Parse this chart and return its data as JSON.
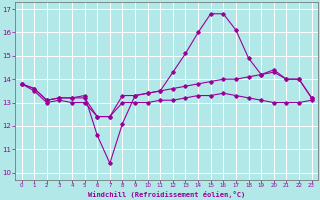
{
  "xlabel": "Windchill (Refroidissement éolien,°C)",
  "background_color": "#b2e8e8",
  "grid_color": "#ffffff",
  "line_color": "#990099",
  "xlim": [
    -0.5,
    23.5
  ],
  "ylim": [
    9.7,
    17.3
  ],
  "xticks": [
    0,
    1,
    2,
    3,
    4,
    5,
    6,
    7,
    8,
    9,
    10,
    11,
    12,
    13,
    14,
    15,
    16,
    17,
    18,
    19,
    20,
    21,
    22,
    23
  ],
  "yticks": [
    10,
    11,
    12,
    13,
    14,
    15,
    16,
    17
  ],
  "line1_x": [
    0,
    1,
    2,
    3,
    4,
    5,
    6,
    7,
    8,
    9,
    10,
    11,
    12,
    13,
    14,
    15,
    16,
    17,
    18,
    19,
    20,
    21,
    22,
    23
  ],
  "line1_y": [
    13.8,
    13.6,
    13.1,
    13.2,
    13.2,
    13.3,
    11.6,
    10.4,
    12.1,
    13.3,
    13.4,
    13.5,
    14.3,
    15.1,
    16.0,
    16.8,
    16.8,
    16.1,
    14.9,
    14.2,
    14.4,
    14.0,
    14.0,
    13.2
  ],
  "line2_x": [
    0,
    1,
    2,
    3,
    4,
    5,
    6,
    7,
    8,
    9,
    10,
    11,
    12,
    13,
    14,
    15,
    16,
    17,
    18,
    19,
    20,
    21,
    22,
    23
  ],
  "line2_y": [
    13.8,
    13.6,
    13.1,
    13.2,
    13.2,
    13.2,
    12.4,
    12.4,
    13.3,
    13.3,
    13.4,
    13.5,
    13.6,
    13.7,
    13.8,
    13.9,
    14.0,
    14.0,
    14.1,
    14.2,
    14.3,
    14.0,
    14.0,
    13.2
  ],
  "line3_x": [
    0,
    1,
    2,
    3,
    4,
    5,
    6,
    7,
    8,
    9,
    10,
    11,
    12,
    13,
    14,
    15,
    16,
    17,
    18,
    19,
    20,
    21,
    22,
    23
  ],
  "line3_y": [
    13.8,
    13.5,
    13.0,
    13.1,
    13.0,
    13.0,
    12.4,
    12.4,
    13.0,
    13.0,
    13.0,
    13.1,
    13.1,
    13.2,
    13.3,
    13.3,
    13.4,
    13.3,
    13.2,
    13.1,
    13.0,
    13.0,
    13.0,
    13.1
  ],
  "marker": "D",
  "marker_size": 1.8,
  "linewidth": 0.8
}
